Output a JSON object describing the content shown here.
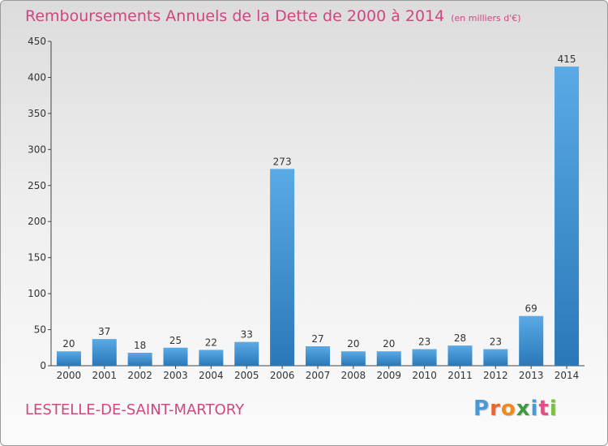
{
  "header": {
    "title": "Remboursements Annuels de la Dette de 2000 à 2014",
    "unit": "(en milliers d'€)"
  },
  "footer": {
    "commune": "LESTELLE-DE-SAINT-MARTORY",
    "brand": "Proxiti"
  },
  "colors": {
    "accent": "#d0467f",
    "bar_light": "#5aaae6",
    "bar_dark": "#2a78b8",
    "logo_letters": [
      "#4a98d8",
      "#e8672e",
      "#f08a1c",
      "#3f9a3f",
      "#4a98d8",
      "#e84a8a",
      "#7cbf3f"
    ]
  },
  "chart_data": {
    "type": "bar",
    "title": "Remboursements Annuels de la Dette de 2000 à 2014",
    "subtitle": "(en milliers d'€)",
    "categories": [
      "2000",
      "2001",
      "2002",
      "2003",
      "2004",
      "2005",
      "2006",
      "2007",
      "2008",
      "2009",
      "2010",
      "2011",
      "2012",
      "2013",
      "2014"
    ],
    "values": [
      20,
      37,
      18,
      25,
      22,
      33,
      273,
      27,
      20,
      20,
      23,
      28,
      23,
      69,
      415
    ],
    "ylim": [
      0,
      450
    ],
    "yticks": [
      0,
      50,
      100,
      150,
      200,
      250,
      300,
      350,
      400,
      450
    ],
    "grid": false,
    "xlabel": "",
    "ylabel": ""
  }
}
